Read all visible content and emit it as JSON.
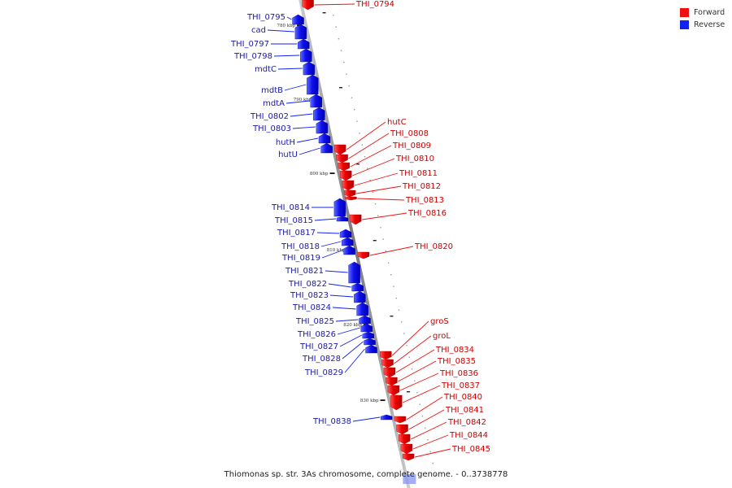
{
  "title": "Thiomonas sp. str. 3As chromosome, complete genome. - 0..3738778",
  "colors": {
    "forward": "#ee1111",
    "reverse": "#1122ee",
    "forward_label": "#cc0000",
    "reverse_label": "#1a1aaa",
    "axis": "#888888"
  },
  "legend": [
    {
      "label": "Forward",
      "color": "#ee1111"
    },
    {
      "label": "Reverse",
      "color": "#1122ee"
    }
  ],
  "ticks": [
    "780 kbp",
    "790 kbp",
    "800 kbp",
    "810 kbp",
    "820 kbp",
    "830 kbp"
  ],
  "forward_genes": [
    "THI_0794",
    "hutC",
    "THI_0808",
    "THI_0809",
    "THI_0810",
    "THI_0811",
    "THI_0812",
    "THI_0813",
    "THI_0816",
    "THI_0820",
    "groS",
    "groL",
    "THI_0834",
    "THI_0835",
    "THI_0836",
    "THI_0837",
    "THI_0840",
    "THI_0841",
    "THI_0842",
    "THI_0844",
    "THI_0845"
  ],
  "reverse_genes": [
    "THI_0795",
    "cad",
    "THI_0797",
    "THI_0798",
    "mdtC",
    "mdtB",
    "mdtA",
    "THI_0802",
    "THI_0803",
    "hutH",
    "hutU",
    "THI_0814",
    "THI_0815",
    "THI_0817",
    "THI_0818",
    "THI_0819",
    "THI_0821",
    "THI_0822",
    "THI_0823",
    "THI_0824",
    "THI_0825",
    "THI_0826",
    "THI_0827",
    "THI_0828",
    "THI_0829",
    "THI_0838"
  ]
}
